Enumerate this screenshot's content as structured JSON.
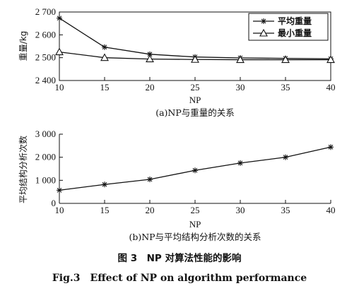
{
  "chart_data": [
    {
      "type": "line",
      "subtitle": "(a)NP与重量的关系",
      "xlabel": "NP",
      "ylabel": "重量/kg",
      "x": [
        10,
        15,
        20,
        25,
        30,
        35,
        40
      ],
      "xticks": [
        "10",
        "15",
        "20",
        "25",
        "30",
        "35",
        "40"
      ],
      "xlim": [
        10,
        40
      ],
      "ylim": [
        2400,
        2700
      ],
      "yticks": [
        2400,
        2500,
        2600,
        2700
      ],
      "ytick_labels": [
        "2 400",
        "2 500",
        "2 600",
        "2 700"
      ],
      "legend_position": "top-right",
      "series": [
        {
          "name": "平均重量",
          "marker": "asterisk",
          "values": [
            2673,
            2546,
            2515,
            2503,
            2499,
            2497,
            2495
          ]
        },
        {
          "name": "最小重量",
          "marker": "triangle",
          "values": [
            2525,
            2500,
            2494,
            2492,
            2491,
            2491,
            2491
          ]
        }
      ]
    },
    {
      "type": "line",
      "subtitle": "(b)NP与平均结构分析次数的关系",
      "xlabel": "NP",
      "ylabel": "平均结构分析次数",
      "x": [
        10,
        15,
        20,
        25,
        30,
        35,
        40
      ],
      "xticks": [
        "10",
        "15",
        "20",
        "25",
        "30",
        "35",
        "40"
      ],
      "xlim": [
        10,
        40
      ],
      "ylim": [
        0,
        3000
      ],
      "yticks": [
        0,
        1000,
        2000,
        3000
      ],
      "ytick_labels": [
        "0",
        "1 000",
        "2 000",
        "3 000"
      ],
      "series": [
        {
          "marker": "asterisk",
          "values": [
            570,
            820,
            1040,
            1430,
            1750,
            2000,
            2440
          ]
        }
      ]
    }
  ],
  "caption": {
    "zh": "图 3　NP 对算法性能的影响",
    "en": "Fig.3　Effect of NP on algorithm performance"
  }
}
